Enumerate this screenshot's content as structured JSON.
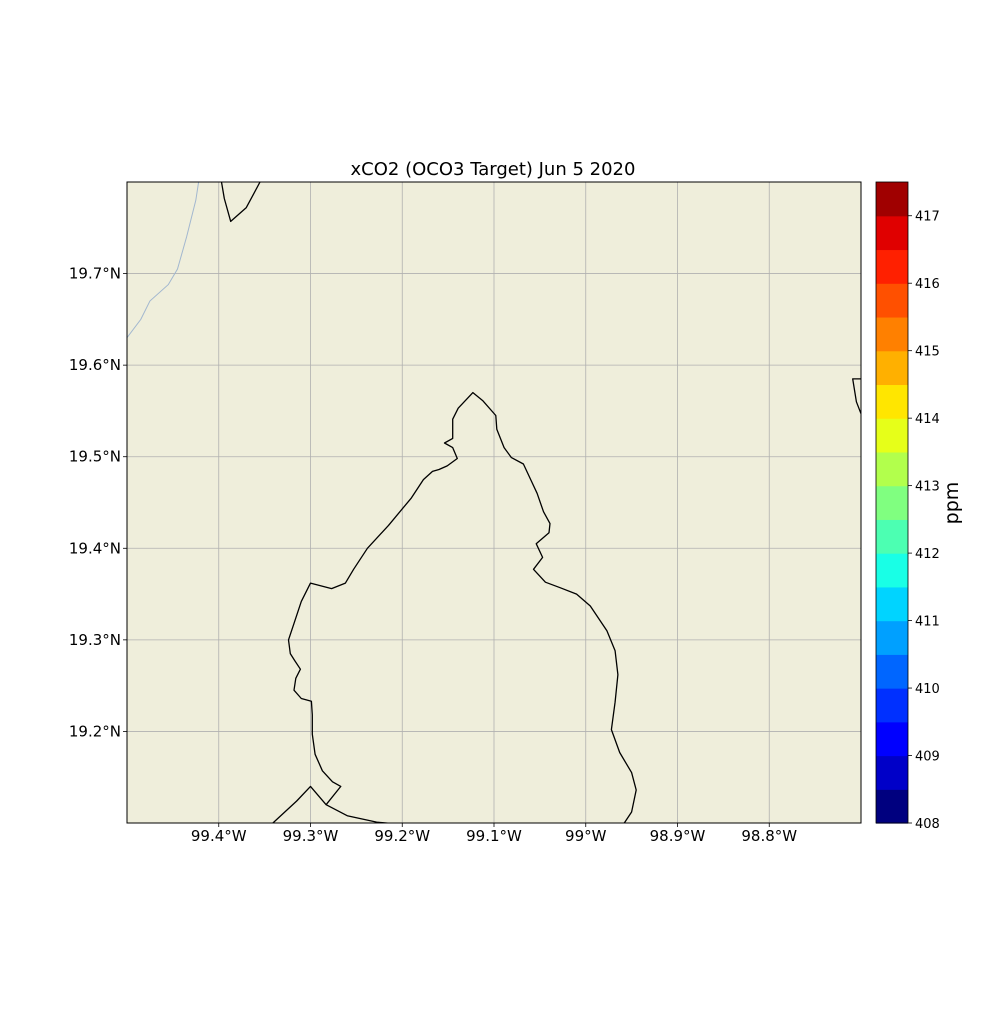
{
  "map": {
    "title": "xCO2 (OCO3 Target) Jun 5 2020",
    "extent": {
      "lon": [
        -99.5,
        -98.7
      ],
      "lat": [
        19.1,
        19.8
      ]
    },
    "land_color": "#efeedb",
    "grid": true,
    "lon_ticks": [
      {
        "value": -99.4,
        "label": "99.4°W"
      },
      {
        "value": -99.3,
        "label": "99.3°W"
      },
      {
        "value": -99.2,
        "label": "99.2°W"
      },
      {
        "value": -99.1,
        "label": "99.1°W"
      },
      {
        "value": -99.0,
        "label": "99°W"
      },
      {
        "value": -98.9,
        "label": "98.9°W"
      },
      {
        "value": -98.8,
        "label": "98.8°W"
      }
    ],
    "lat_ticks": [
      {
        "value": 19.2,
        "label": "19.2°N"
      },
      {
        "value": 19.3,
        "label": "19.3°N"
      },
      {
        "value": 19.4,
        "label": "19.4°N"
      },
      {
        "value": 19.5,
        "label": "19.5°N"
      },
      {
        "value": 19.6,
        "label": "19.6°N"
      },
      {
        "value": 19.7,
        "label": "19.7°N"
      }
    ],
    "boundaries": [
      {
        "name": "mexico-city-boundary",
        "color": "#000000",
        "points": [
          [
            -99.341,
            19.1
          ],
          [
            -99.315,
            19.124
          ],
          [
            -99.3,
            19.14
          ],
          [
            -99.283,
            19.12
          ],
          [
            -99.26,
            19.108
          ],
          [
            -99.228,
            19.101
          ],
          [
            -99.185,
            19.097
          ],
          [
            -99.17,
            19.097
          ],
          [
            -99.1,
            19.097
          ],
          [
            -98.98,
            19.097
          ],
          [
            -98.958,
            19.1
          ]
        ]
      },
      {
        "name": "cdmx-outline",
        "color": "#000000",
        "points": [
          [
            -98.958,
            19.1
          ],
          [
            -98.95,
            19.112
          ],
          [
            -98.945,
            19.136
          ],
          [
            -98.95,
            19.155
          ],
          [
            -98.963,
            19.177
          ],
          [
            -98.972,
            19.202
          ],
          [
            -98.968,
            19.232
          ],
          [
            -98.965,
            19.262
          ],
          [
            -98.968,
            19.288
          ],
          [
            -98.977,
            19.31
          ],
          [
            -98.995,
            19.337
          ],
          [
            -99.01,
            19.35
          ],
          [
            -99.028,
            19.357
          ],
          [
            -99.044,
            19.363
          ],
          [
            -99.057,
            19.377
          ],
          [
            -99.047,
            19.39
          ],
          [
            -99.054,
            19.405
          ],
          [
            -99.04,
            19.417
          ],
          [
            -99.039,
            19.427
          ],
          [
            -99.046,
            19.44
          ],
          [
            -99.053,
            19.46
          ],
          [
            -99.06,
            19.475
          ],
          [
            -99.068,
            19.492
          ],
          [
            -99.081,
            19.499
          ],
          [
            -99.089,
            19.51
          ],
          [
            -99.097,
            19.53
          ],
          [
            -99.098,
            19.545
          ],
          [
            -99.112,
            19.561
          ],
          [
            -99.123,
            19.57
          ],
          [
            -99.139,
            19.553
          ],
          [
            -99.145,
            19.541
          ],
          [
            -99.145,
            19.52
          ],
          [
            -99.154,
            19.515
          ],
          [
            -99.145,
            19.51
          ],
          [
            -99.14,
            19.498
          ],
          [
            -99.151,
            19.49
          ],
          [
            -99.16,
            19.486
          ],
          [
            -99.167,
            19.484
          ],
          [
            -99.177,
            19.475
          ],
          [
            -99.19,
            19.455
          ],
          [
            -99.215,
            19.425
          ],
          [
            -99.238,
            19.4
          ],
          [
            -99.253,
            19.377
          ],
          [
            -99.262,
            19.362
          ],
          [
            -99.277,
            19.356
          ],
          [
            -99.3,
            19.362
          ],
          [
            -99.31,
            19.342
          ],
          [
            -99.318,
            19.318
          ],
          [
            -99.324,
            19.3
          ],
          [
            -99.322,
            19.285
          ],
          [
            -99.317,
            19.277
          ],
          [
            -99.311,
            19.268
          ],
          [
            -99.316,
            19.258
          ],
          [
            -99.318,
            19.245
          ],
          [
            -99.31,
            19.236
          ],
          [
            -99.299,
            19.233
          ],
          [
            -99.298,
            19.218
          ],
          [
            -99.298,
            19.197
          ],
          [
            -99.295,
            19.175
          ],
          [
            -99.287,
            19.157
          ],
          [
            -99.276,
            19.145
          ],
          [
            -99.267,
            19.14
          ],
          [
            -99.283,
            19.12
          ]
        ]
      },
      {
        "name": "northwest-boundary",
        "color": "#000000",
        "points": [
          [
            -99.397,
            19.8
          ],
          [
            -99.394,
            19.782
          ],
          [
            -99.387,
            19.757
          ],
          [
            -99.37,
            19.772
          ],
          [
            -99.355,
            19.8
          ]
        ]
      },
      {
        "name": "northeast-boundary",
        "color": "#000000",
        "points": [
          [
            -98.7,
            19.585
          ],
          [
            -98.709,
            19.585
          ],
          [
            -98.705,
            19.56
          ],
          [
            -98.7,
            19.547
          ]
        ]
      }
    ],
    "rivers": [
      {
        "name": "river",
        "color": "#a2b7cf",
        "points": [
          [
            -99.5,
            19.63
          ],
          [
            -99.485,
            19.65
          ],
          [
            -99.475,
            19.67
          ],
          [
            -99.455,
            19.688
          ],
          [
            -99.445,
            19.705
          ],
          [
            -99.435,
            19.74
          ],
          [
            -99.425,
            19.78
          ],
          [
            -99.422,
            19.8
          ]
        ]
      }
    ]
  },
  "colorbar": {
    "label": "ppm",
    "min": 408,
    "max": 417.5,
    "ticks": [
      {
        "value": 408,
        "label": "408"
      },
      {
        "value": 409,
        "label": "409"
      },
      {
        "value": 410,
        "label": "410"
      },
      {
        "value": 411,
        "label": "411"
      },
      {
        "value": 412,
        "label": "412"
      },
      {
        "value": 413,
        "label": "413"
      },
      {
        "value": 414,
        "label": "414"
      },
      {
        "value": 415,
        "label": "415"
      },
      {
        "value": 416,
        "label": "416"
      },
      {
        "value": 417,
        "label": "417"
      }
    ],
    "colors": [
      "#00007f",
      "#0000c8",
      "#0000ff",
      "#0030ff",
      "#0066ff",
      "#00a0ff",
      "#00d4ff",
      "#19ffe6",
      "#4cffb2",
      "#80ff80",
      "#b2ff4c",
      "#e6ff19",
      "#ffe600",
      "#ffb000",
      "#ff8000",
      "#ff5000",
      "#ff2000",
      "#e00000",
      "#a00000"
    ]
  }
}
